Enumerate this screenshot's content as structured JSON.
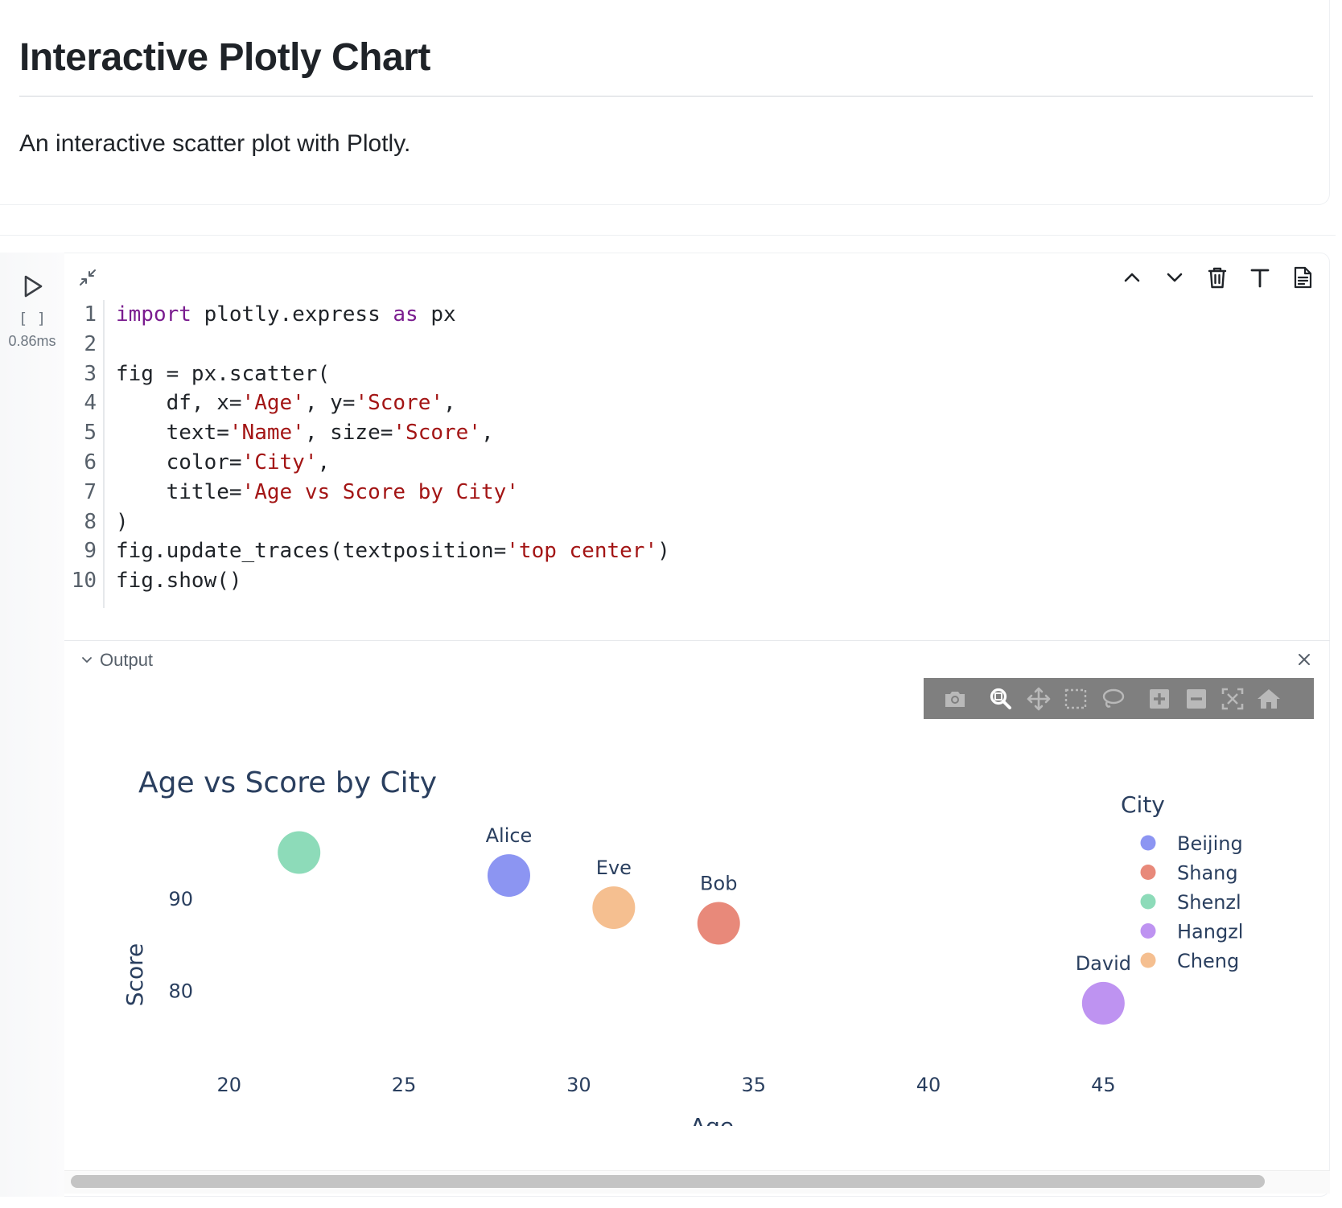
{
  "markdown": {
    "title": "Interactive Plotly Chart",
    "description": "An interactive scatter plot with Plotly."
  },
  "cell": {
    "exec_count": "[ ]",
    "exec_time": "0.86ms",
    "toolbar": {
      "icons": [
        "chevron-up-icon",
        "chevron-down-icon",
        "trash-icon",
        "text-icon",
        "document-icon"
      ]
    },
    "line_numbers": [
      "1",
      "2",
      "3",
      "4",
      "5",
      "6",
      "7",
      "8",
      "9",
      "10"
    ],
    "code": [
      [
        {
          "t": "import",
          "c": "kw"
        },
        {
          "t": " plotly.express "
        },
        {
          "t": "as",
          "c": "kw"
        },
        {
          "t": " px"
        }
      ],
      [],
      [
        {
          "t": "fig = px.scatter("
        }
      ],
      [
        {
          "t": "    df, x="
        },
        {
          "t": "'Age'",
          "c": "str"
        },
        {
          "t": ", y="
        },
        {
          "t": "'Score'",
          "c": "str"
        },
        {
          "t": ","
        }
      ],
      [
        {
          "t": "    text="
        },
        {
          "t": "'Name'",
          "c": "str"
        },
        {
          "t": ", size="
        },
        {
          "t": "'Score'",
          "c": "str"
        },
        {
          "t": ","
        }
      ],
      [
        {
          "t": "    color="
        },
        {
          "t": "'City'",
          "c": "str"
        },
        {
          "t": ","
        }
      ],
      [
        {
          "t": "    title="
        },
        {
          "t": "'Age vs Score by City'",
          "c": "str"
        }
      ],
      [
        {
          "t": ")"
        }
      ],
      [
        {
          "t": "fig.update_traces(textposition="
        },
        {
          "t": "'top center'",
          "c": "str"
        },
        {
          "t": ")"
        }
      ],
      [
        {
          "t": "fig.show()"
        }
      ]
    ]
  },
  "output": {
    "label": "Output",
    "modebar_icons": [
      "camera-icon",
      "zoom-icon",
      "pan-icon",
      "box-select-icon",
      "lasso-icon",
      "zoom-in-icon",
      "zoom-out-icon",
      "autoscale-icon",
      "reset-axes-icon"
    ]
  },
  "chart_data": {
    "type": "scatter",
    "title": "Age vs Score by City",
    "xlabel": "Age",
    "ylabel": "Score",
    "x_ticks": [
      20,
      25,
      30,
      35,
      40,
      45
    ],
    "y_ticks": [
      80,
      90
    ],
    "xlim": [
      19.2,
      47.5
    ],
    "ylim": [
      74,
      98.5
    ],
    "legend_title": "City",
    "legend_position": "right",
    "grid": false,
    "series": [
      {
        "name": "Beijing",
        "color": "#8c95f2",
        "points": [
          {
            "x": 28,
            "y": 92.5,
            "label": "Alice"
          }
        ]
      },
      {
        "name": "Shanghai",
        "color": "#e8897a",
        "points": [
          {
            "x": 34,
            "y": 87.3,
            "label": "Bob"
          }
        ]
      },
      {
        "name": "Shenzhen",
        "color": "#8ddbb9",
        "points": [
          {
            "x": 22,
            "y": 95,
            "label": ""
          }
        ]
      },
      {
        "name": "Hangzhou",
        "color": "#be93f1",
        "points": [
          {
            "x": 45,
            "y": 78.6,
            "label": "David"
          }
        ]
      },
      {
        "name": "Chengdu",
        "color": "#f5bf90",
        "points": [
          {
            "x": 31,
            "y": 89,
            "label": "Eve"
          }
        ]
      }
    ],
    "legend_labels_visible": [
      "Beijing",
      "Shang",
      "Shenzl",
      "Hangzl",
      "Cheng"
    ]
  }
}
